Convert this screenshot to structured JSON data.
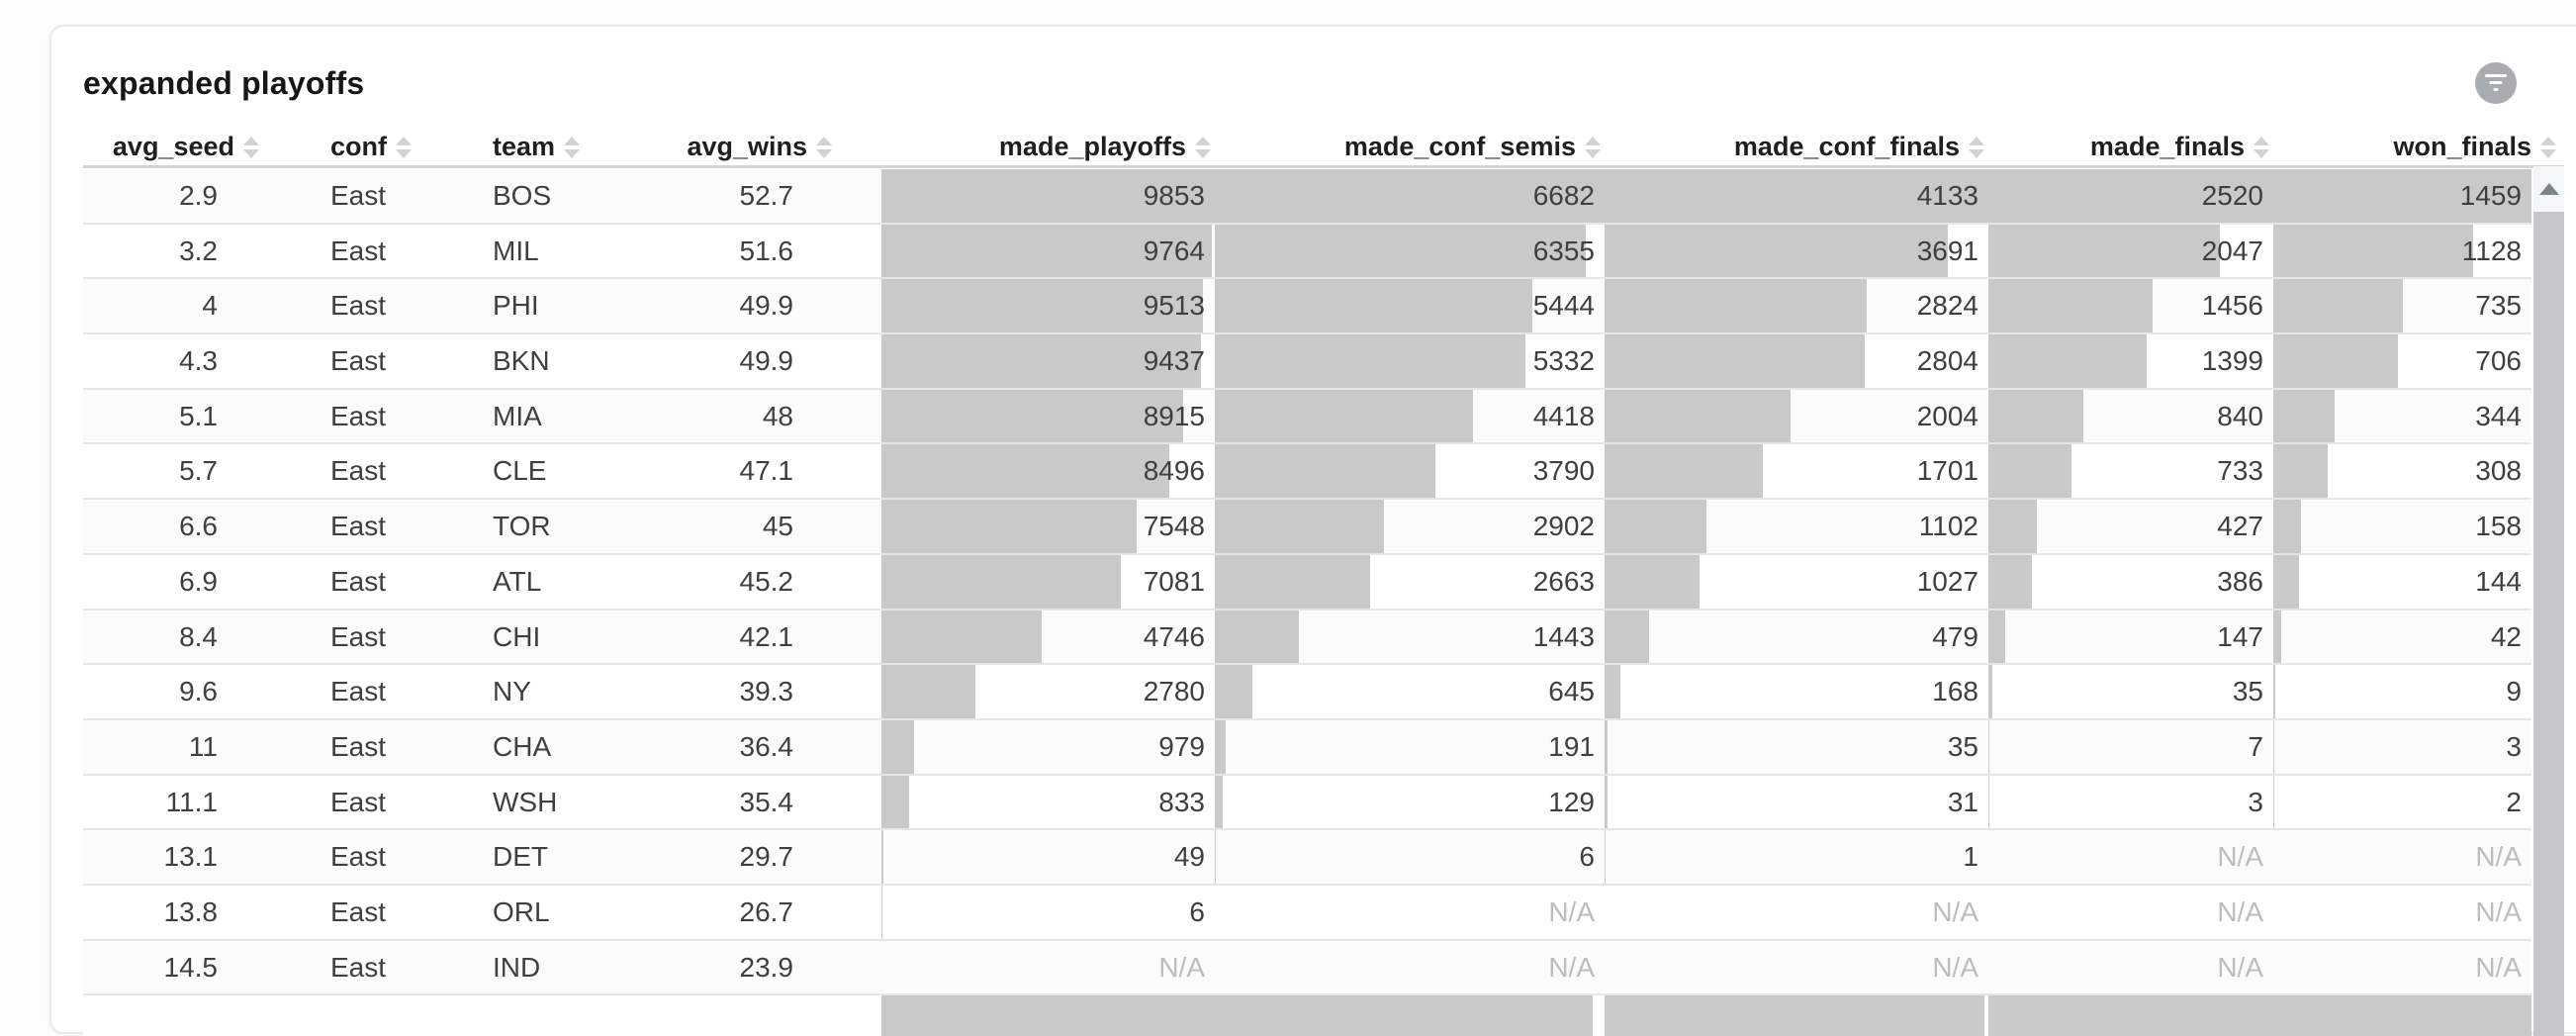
{
  "card": {
    "title": "expanded playoffs"
  },
  "toolbar": {
    "filter_icon": "filter-icon",
    "menu_icon": "kebab-menu-icon"
  },
  "icons": {
    "sort": "sort-chevrons-icon",
    "scroll_up": "scroll-up-arrow-icon"
  },
  "colors": {
    "bar_fill": "#c9c9c9",
    "filter_button_bg": "#a9acb0",
    "kebab_dots": "#5d6b79",
    "na_text": "#bdbdbd",
    "header_text": "#1f1f1f",
    "cell_text": "#3f3f3f"
  },
  "table": {
    "na_label": "N/A",
    "columns": [
      {
        "key": "avg_seed",
        "label": "avg_seed",
        "type": "number"
      },
      {
        "key": "conf",
        "label": "conf",
        "type": "text"
      },
      {
        "key": "team",
        "label": "team",
        "type": "text"
      },
      {
        "key": "avg_wins",
        "label": "avg_wins",
        "type": "number"
      },
      {
        "key": "made_playoffs",
        "label": "made_playoffs",
        "type": "bar",
        "max": 9853
      },
      {
        "key": "made_conf_semis",
        "label": "made_conf_semis",
        "type": "bar",
        "max": 6682
      },
      {
        "key": "made_conf_finals",
        "label": "made_conf_finals",
        "type": "bar",
        "max": 4133
      },
      {
        "key": "made_finals",
        "label": "made_finals",
        "type": "bar",
        "max": 2520
      },
      {
        "key": "won_finals",
        "label": "won_finals",
        "type": "bar",
        "max": 1459
      }
    ],
    "rows": [
      [
        "2.9",
        "East",
        "BOS",
        "52.7",
        "9853",
        "6682",
        "4133",
        "2520",
        "1459"
      ],
      [
        "3.2",
        "East",
        "MIL",
        "51.6",
        "9764",
        "6355",
        "3691",
        "2047",
        "1128"
      ],
      [
        "4",
        "East",
        "PHI",
        "49.9",
        "9513",
        "5444",
        "2824",
        "1456",
        "735"
      ],
      [
        "4.3",
        "East",
        "BKN",
        "49.9",
        "9437",
        "5332",
        "2804",
        "1399",
        "706"
      ],
      [
        "5.1",
        "East",
        "MIA",
        "48",
        "8915",
        "4418",
        "2004",
        "840",
        "344"
      ],
      [
        "5.7",
        "East",
        "CLE",
        "47.1",
        "8496",
        "3790",
        "1701",
        "733",
        "308"
      ],
      [
        "6.6",
        "East",
        "TOR",
        "45",
        "7548",
        "2902",
        "1102",
        "427",
        "158"
      ],
      [
        "6.9",
        "East",
        "ATL",
        "45.2",
        "7081",
        "2663",
        "1027",
        "386",
        "144"
      ],
      [
        "8.4",
        "East",
        "CHI",
        "42.1",
        "4746",
        "1443",
        "479",
        "147",
        "42"
      ],
      [
        "9.6",
        "East",
        "NY",
        "39.3",
        "2780",
        "645",
        "168",
        "35",
        "9"
      ],
      [
        "11",
        "East",
        "CHA",
        "36.4",
        "979",
        "191",
        "35",
        "7",
        "3"
      ],
      [
        "11.1",
        "East",
        "WSH",
        "35.4",
        "833",
        "129",
        "31",
        "3",
        "2"
      ],
      [
        "13.1",
        "East",
        "DET",
        "29.7",
        "49",
        "6",
        "1",
        "N/A",
        "N/A"
      ],
      [
        "13.8",
        "East",
        "ORL",
        "26.7",
        "6",
        "N/A",
        "N/A",
        "N/A",
        "N/A"
      ],
      [
        "14.5",
        "East",
        "IND",
        "23.9",
        "N/A",
        "N/A",
        "N/A",
        "N/A",
        "N/A"
      ]
    ],
    "partial_bottom_row": {
      "bar_fractions": [
        1,
        0.97,
        0.99,
        1,
        1
      ]
    }
  }
}
